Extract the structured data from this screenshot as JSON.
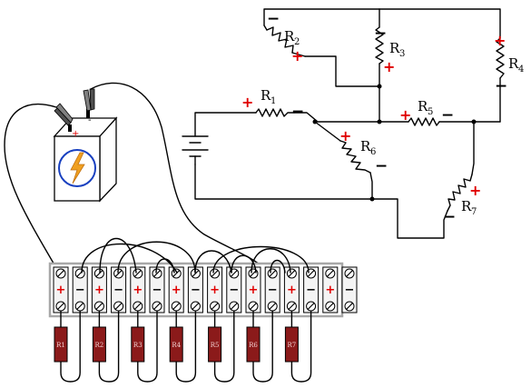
{
  "schematic": {
    "resistors": [
      {
        "id": "R2",
        "letter": "R",
        "sub": "2"
      },
      {
        "id": "R3",
        "letter": "R",
        "sub": "3"
      },
      {
        "id": "R4",
        "letter": "R",
        "sub": "4"
      },
      {
        "id": "R1",
        "letter": "R",
        "sub": "1"
      },
      {
        "id": "R5",
        "letter": "R",
        "sub": "5"
      },
      {
        "id": "R6",
        "letter": "R",
        "sub": "6"
      },
      {
        "id": "R7",
        "letter": "R",
        "sub": "7"
      }
    ],
    "plus": "+",
    "minus": "−"
  },
  "battery": {
    "positive_mark": "+",
    "negative_mark": "-",
    "icon": "lightning-bolt-icon",
    "colors": {
      "bolt": "#f0a020",
      "circle": "#1840c0"
    }
  },
  "terminal_strip": {
    "top_markings": [
      "+",
      "−",
      "+",
      "−",
      "+",
      "−",
      "+",
      "−",
      "+",
      "−",
      "+",
      "−",
      "+",
      "−",
      "+",
      "−"
    ],
    "resistor_labels": [
      "R1",
      "R2",
      "R3",
      "R4",
      "R5",
      "R6",
      "R7"
    ],
    "colors": {
      "resistor_body": "#8b1a1a",
      "plus": "#e00000"
    }
  }
}
